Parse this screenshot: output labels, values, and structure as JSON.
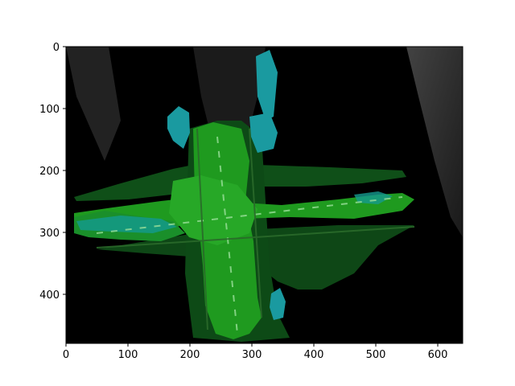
{
  "figure": {
    "image_desc": "",
    "x_ticks": [
      "0",
      "100",
      "200",
      "300",
      "400",
      "500",
      "600"
    ],
    "y_ticks": [
      "0",
      "100",
      "200",
      "300",
      "400"
    ],
    "colors": {
      "background": "#000000",
      "bright_green": "#1f9a1f",
      "dark_green": "#0f4f18",
      "teal": "#1a9aa0",
      "gray": "#3a3a3a"
    }
  }
}
